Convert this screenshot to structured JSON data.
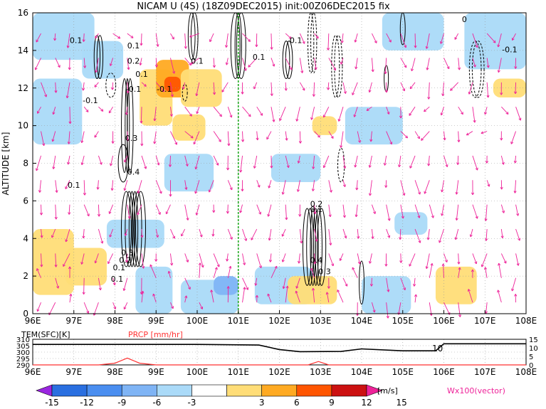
{
  "chart_data": [
    {
      "type": "heatmap",
      "title": "NICAM U (4S) (18Z09DEC2015) init:00Z06DEC2015 fix",
      "xlabel": "",
      "ylabel": "ALTITUDE [km]",
      "x_ticks": [
        "96E",
        "97E",
        "98E",
        "99E",
        "100E",
        "101E",
        "102E",
        "103E",
        "104E",
        "105E",
        "106E",
        "107E",
        "108E"
      ],
      "x_range": [
        96,
        108
      ],
      "y_ticks": [
        "0",
        "2",
        "4",
        "6",
        "8",
        "10",
        "12",
        "14",
        "16"
      ],
      "y_range": [
        0,
        16
      ],
      "grid": true,
      "vertical_marker_lon": 101,
      "colorbar": {
        "labels": [
          "-15",
          "-12",
          "-9",
          "-6",
          "-3",
          "3",
          "6",
          "9",
          "12",
          "15"
        ],
        "unit": "[m/s]",
        "colors": [
          "#9a26e0",
          "#2a6fe0",
          "#4a8ef0",
          "#7fb4f5",
          "#aadaf8",
          "#ffffff",
          "#ffdd77",
          "#ffaa22",
          "#ff5500",
          "#cc1111",
          "#ee2299"
        ]
      },
      "vector_label": "Wx100(vector)",
      "contour_labels": [
        "0.1",
        "0.2",
        "0.1",
        "-0.1",
        "0.3",
        "0.4",
        "0.1",
        "0.1",
        "0.1",
        "0.1",
        "0.1",
        "-0.1",
        "-0.1",
        "0",
        "-0.1",
        "0.1",
        "0.2",
        "0.4",
        "0.3",
        "0.1",
        "0.3",
        "0.2",
        "0.1"
      ],
      "regions": [
        {
          "lon": [
            96.0,
            97.5
          ],
          "alt": [
            13.5,
            16.0
          ],
          "value": -4
        },
        {
          "lon": [
            97.2,
            98.2
          ],
          "alt": [
            12.5,
            14.5
          ],
          "value": -4
        },
        {
          "lon": [
            98.6,
            99.4
          ],
          "alt": [
            10.0,
            13.0
          ],
          "value": 4
        },
        {
          "lon": [
            99.0,
            99.8
          ],
          "alt": [
            11.5,
            13.5
          ],
          "value": 7
        },
        {
          "lon": [
            99.2,
            99.6
          ],
          "alt": [
            11.8,
            12.6
          ],
          "value": 10
        },
        {
          "lon": [
            99.6,
            100.6
          ],
          "alt": [
            11.0,
            13.0
          ],
          "value": 4
        },
        {
          "lon": [
            96.0,
            97.2
          ],
          "alt": [
            9.0,
            12.5
          ],
          "value": -4
        },
        {
          "lon": [
            99.4,
            100.2
          ],
          "alt": [
            9.2,
            10.6
          ],
          "value": 4
        },
        {
          "lon": [
            102.8,
            103.4
          ],
          "alt": [
            9.5,
            10.5
          ],
          "value": 4
        },
        {
          "lon": [
            103.6,
            105.0
          ],
          "alt": [
            9.0,
            11.0
          ],
          "value": -4
        },
        {
          "lon": [
            104.5,
            106.0
          ],
          "alt": [
            14.0,
            16.0
          ],
          "value": -4
        },
        {
          "lon": [
            106.5,
            108.0
          ],
          "alt": [
            13.0,
            16.0
          ],
          "value": -4
        },
        {
          "lon": [
            107.2,
            108.0
          ],
          "alt": [
            11.5,
            12.5
          ],
          "value": 4
        },
        {
          "lon": [
            96.0,
            97.0
          ],
          "alt": [
            1.0,
            4.5
          ],
          "value": 4
        },
        {
          "lon": [
            96.8,
            97.8
          ],
          "alt": [
            1.5,
            3.5
          ],
          "value": 4
        },
        {
          "lon": [
            98.5,
            99.4
          ],
          "alt": [
            0.0,
            2.5
          ],
          "value": -4
        },
        {
          "lon": [
            99.6,
            101.0
          ],
          "alt": [
            0.0,
            1.8
          ],
          "value": -4
        },
        {
          "lon": [
            100.4,
            101.0
          ],
          "alt": [
            1.0,
            2.0
          ],
          "value": -7
        },
        {
          "lon": [
            101.4,
            102.8
          ],
          "alt": [
            0.5,
            2.5
          ],
          "value": -4
        },
        {
          "lon": [
            102.2,
            103.4
          ],
          "alt": [
            0.5,
            2.0
          ],
          "value": 4
        },
        {
          "lon": [
            104.0,
            105.2
          ],
          "alt": [
            0.0,
            2.0
          ],
          "value": -4
        },
        {
          "lon": [
            105.8,
            106.8
          ],
          "alt": [
            0.5,
            2.5
          ],
          "value": 4
        },
        {
          "lon": [
            99.2,
            100.4
          ],
          "alt": [
            6.5,
            8.5
          ],
          "value": -4
        },
        {
          "lon": [
            101.8,
            103.0
          ],
          "alt": [
            7.0,
            8.5
          ],
          "value": -4
        },
        {
          "lon": [
            97.8,
            99.2
          ],
          "alt": [
            3.5,
            5.0
          ],
          "value": -4
        },
        {
          "lon": [
            104.8,
            105.6
          ],
          "alt": [
            4.2,
            5.4
          ],
          "value": -4
        }
      ]
    },
    {
      "type": "line",
      "legend": [
        "TEM(SFC)[K]",
        "PRCP [mm/hr]"
      ],
      "x_range": [
        96,
        108
      ],
      "y_left_ticks": [
        "290",
        "295",
        "300",
        "305",
        "310"
      ],
      "y_left_range": [
        290,
        310
      ],
      "y_right_ticks": [
        "0",
        "5",
        "10",
        "15"
      ],
      "y_right_range": [
        0,
        15
      ],
      "annotation": "10",
      "series": [
        {
          "name": "TEM(SFC)[K]",
          "color": "#000000",
          "x": [
            96,
            98,
            100,
            101.5,
            102,
            102.5,
            103.5,
            104,
            105,
            105.8,
            106,
            108
          ],
          "y": [
            306,
            306,
            306,
            305.5,
            302,
            300.3,
            300.5,
            302.5,
            301,
            301,
            306.5,
            306.5
          ]
        },
        {
          "name": "PRCP [mm/hr]",
          "color": "#ff3333",
          "x": [
            96,
            97.6,
            98,
            98.3,
            98.6,
            99,
            102.7,
            102.95,
            103.2,
            104,
            104.5,
            108
          ],
          "y": [
            0,
            0,
            1,
            4,
            1,
            0,
            0,
            2,
            0,
            0,
            0,
            0
          ]
        }
      ]
    }
  ]
}
